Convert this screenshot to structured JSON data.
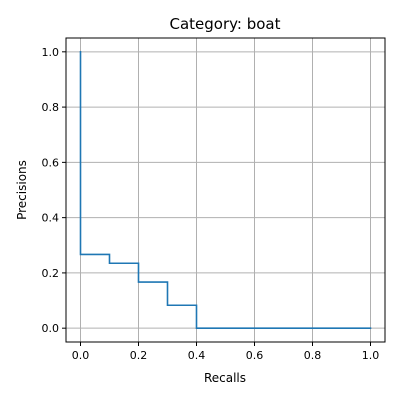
{
  "chart_data": {
    "type": "line",
    "title": "Category: boat",
    "xlabel": "Recalls",
    "ylabel": "Precisions",
    "xlim": [
      -0.05,
      1.05
    ],
    "ylim": [
      -0.05,
      1.05
    ],
    "x_ticks": [
      0.0,
      0.2,
      0.4,
      0.6,
      0.8,
      1.0
    ],
    "y_ticks": [
      0.0,
      0.2,
      0.4,
      0.6,
      0.8,
      1.0
    ],
    "x_tick_labels": [
      "0.0",
      "0.2",
      "0.4",
      "0.6",
      "0.8",
      "1.0"
    ],
    "y_tick_labels": [
      "0.0",
      "0.2",
      "0.4",
      "0.6",
      "0.8",
      "1.0"
    ],
    "grid": true,
    "step": true,
    "series": [
      {
        "color": "#1f77b4",
        "points": [
          [
            0.0,
            1.0
          ],
          [
            0.0,
            0.267
          ],
          [
            0.1,
            0.267
          ],
          [
            0.1,
            0.235
          ],
          [
            0.2,
            0.235
          ],
          [
            0.2,
            0.167
          ],
          [
            0.3,
            0.167
          ],
          [
            0.3,
            0.083
          ],
          [
            0.4,
            0.083
          ],
          [
            0.4,
            0.0
          ],
          [
            1.0,
            0.0
          ]
        ]
      }
    ]
  }
}
